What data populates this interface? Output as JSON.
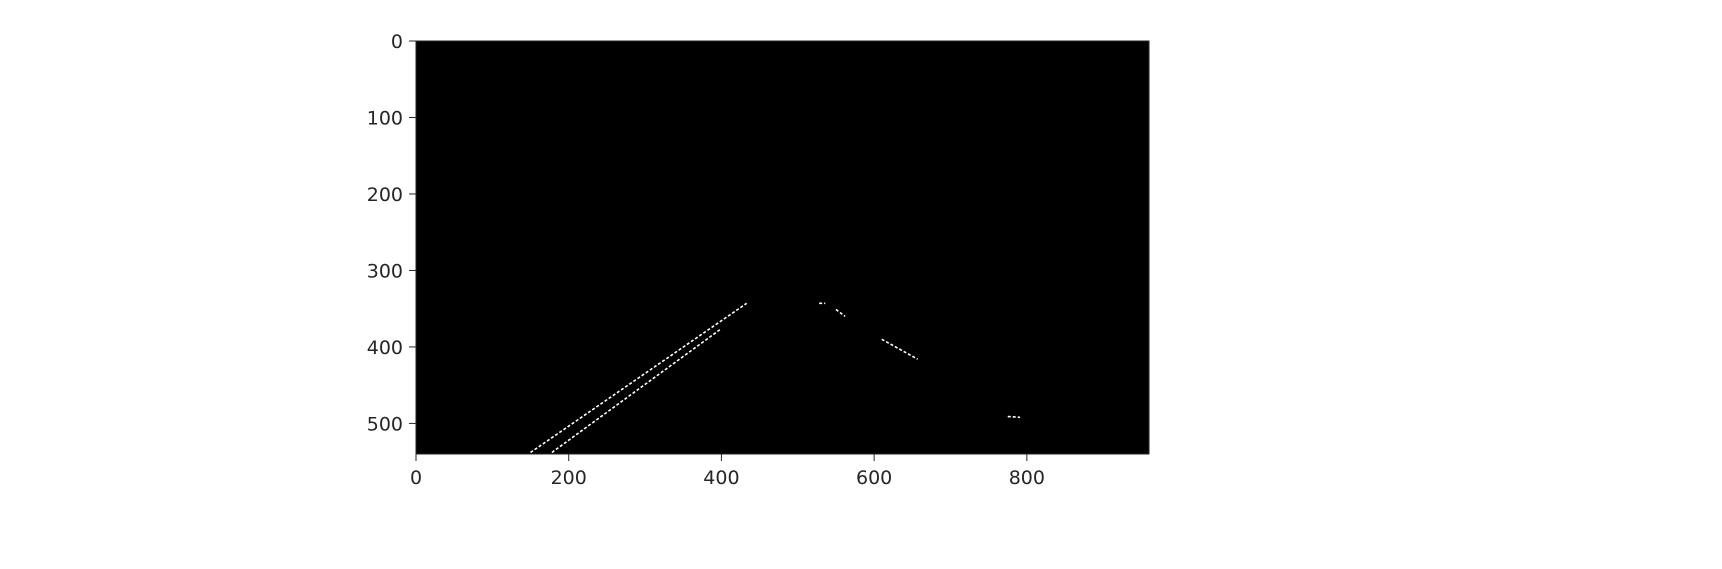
{
  "chart_data": {
    "type": "image",
    "title": "",
    "xlabel": "",
    "ylabel": "",
    "image_size": [
      960,
      540
    ],
    "xlim": [
      0,
      960
    ],
    "ylim": [
      540,
      0
    ],
    "x_ticks": [
      0,
      200,
      400,
      600,
      800
    ],
    "y_ticks": [
      0,
      100,
      200,
      300,
      400,
      500
    ],
    "background_color": "#000000",
    "edge_color": "#ffffff",
    "axis_color": "#262626",
    "edge_segments": [
      {
        "points": [
          [
            150,
            538
          ],
          [
            433,
            343
          ]
        ]
      },
      {
        "points": [
          [
            178,
            538
          ],
          [
            400,
            376
          ]
        ]
      },
      {
        "points": [
          [
            528,
            343
          ],
          [
            536,
            343
          ]
        ]
      },
      {
        "points": [
          [
            550,
            351
          ],
          [
            562,
            360
          ]
        ]
      },
      {
        "points": [
          [
            610,
            390
          ],
          [
            657,
            416
          ]
        ]
      },
      {
        "points": [
          [
            775,
            491
          ],
          [
            791,
            492
          ]
        ]
      }
    ]
  }
}
